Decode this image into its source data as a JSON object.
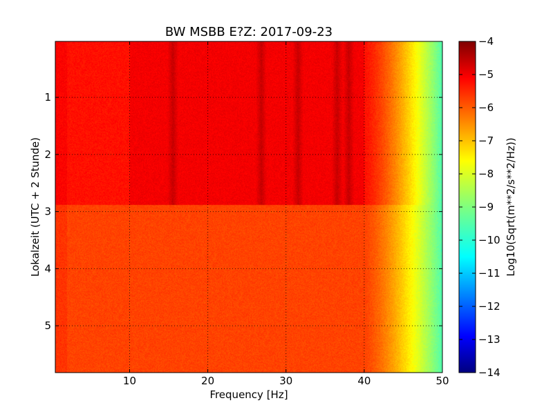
{
  "chart_data": {
    "type": "heatmap",
    "title": "BW MSBB E?Z: 2017-09-23",
    "xlabel": "Frequency [Hz]",
    "ylabel": "Lokalzeit (UTC + 2 Stunde)",
    "xlim": [
      0.5,
      50
    ],
    "ylim": [
      5.82,
      0.02
    ],
    "x_ticks": [
      10,
      20,
      30,
      40,
      50
    ],
    "x_tick_labels": [
      "10",
      "20",
      "30",
      "40",
      "50"
    ],
    "y_ticks": [
      1,
      2,
      3,
      4,
      5
    ],
    "y_tick_labels": [
      "1",
      "2",
      "3",
      "4",
      "5"
    ],
    "grid": true,
    "colorbar": {
      "label": "Log10(Sqrt(m**2/s**2/Hz))",
      "range": [
        -14,
        -4
      ],
      "ticks": [
        -4,
        -5,
        -6,
        -7,
        -8,
        -9,
        -10,
        -11,
        -12,
        -13,
        -14
      ],
      "tick_labels": [
        "−4",
        "−5",
        "−6",
        "−7",
        "−8",
        "−9",
        "−10",
        "−11",
        "−12",
        "−13",
        "−14"
      ],
      "colormap": "jet"
    },
    "description_values": {
      "time_break_hours": 2.88,
      "upper_band_level": -5.4,
      "lower_band_level": -5.9,
      "rolloff_start_hz": 40,
      "rolloff_end_level": -9.5,
      "strong_bands_hz": [
        15.5,
        26.8,
        31.5,
        36.5,
        38.0
      ]
    }
  }
}
